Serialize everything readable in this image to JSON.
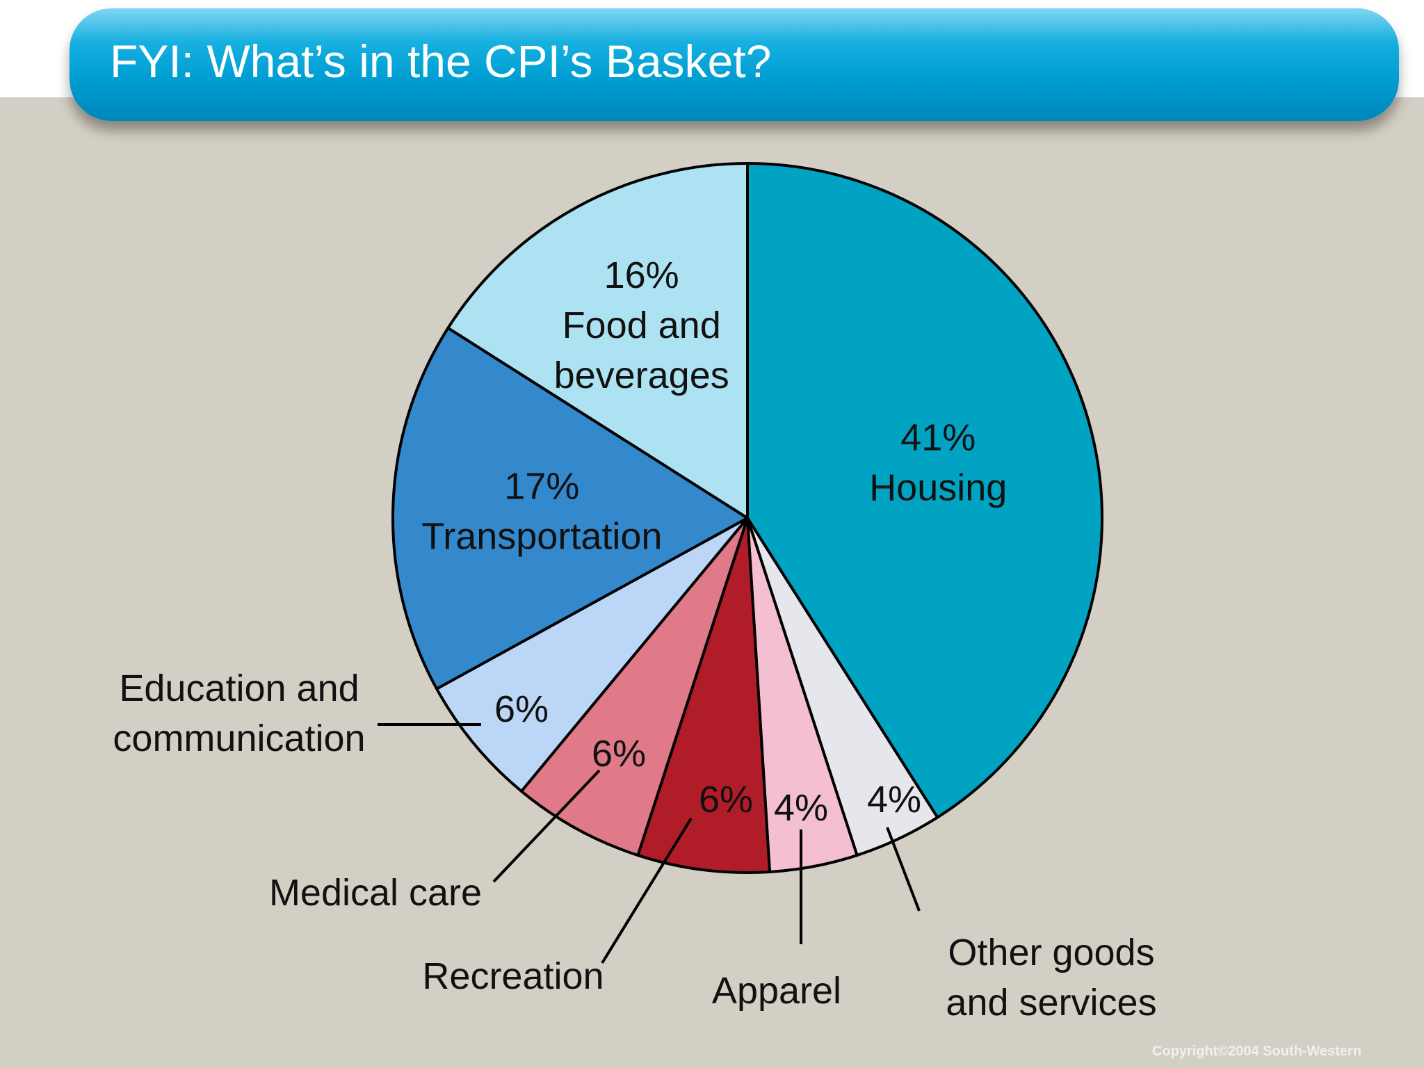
{
  "slide": {
    "title": "FYI: What’s in the CPI’s Basket?",
    "copyright": "Copyright©2004  South-Western"
  },
  "colors": {
    "background": "#d4cfc4",
    "title_bar": "#009fd3"
  },
  "chart_data": {
    "type": "pie",
    "title": "",
    "slices": [
      {
        "name": "Housing",
        "value": 41,
        "label": "41%",
        "color": "#00a3c2"
      },
      {
        "name": "Other goods and services",
        "value": 4,
        "label": "4%",
        "color": "#e6e7ec"
      },
      {
        "name": "Apparel",
        "value": 4,
        "label": "4%",
        "color": "#f3bfd1"
      },
      {
        "name": "Recreation",
        "value": 6,
        "label": "6%",
        "color": "#b11c29"
      },
      {
        "name": "Medical care",
        "value": 6,
        "label": "6%",
        "color": "#e07a88"
      },
      {
        "name": "Education and communication",
        "value": 6,
        "label": "6%",
        "color": "#bcd6f7"
      },
      {
        "name": "Transportation",
        "value": 17,
        "label": "17%",
        "color": "#3488cc"
      },
      {
        "name": "Food and beverages",
        "value": 16,
        "label": "16%",
        "color": "#ace2f2"
      }
    ],
    "start": "top",
    "direction": "clockwise",
    "legend": "none"
  }
}
